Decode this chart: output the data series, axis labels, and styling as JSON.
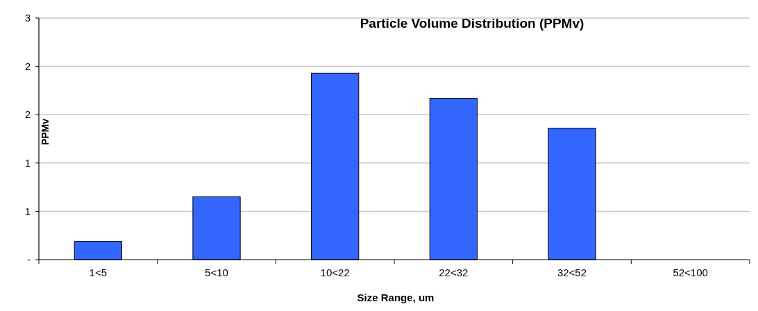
{
  "chart_data": {
    "type": "bar",
    "title": "Particle Volume Distribution (PPMv)",
    "xlabel": "Size Range, um",
    "ylabel": "PPMv",
    "categories": [
      "1<5",
      "5<10",
      "10<22",
      "22<32",
      "32<52",
      "52<100"
    ],
    "values": [
      0.19,
      0.65,
      1.93,
      1.67,
      1.36,
      0
    ],
    "color": "#3366ff",
    "ylim": [
      0,
      2.5
    ],
    "yticks": [
      {
        "value": 0,
        "label": "-"
      },
      {
        "value": 0.5,
        "label": "1"
      },
      {
        "value": 1,
        "label": "1"
      },
      {
        "value": 1.5,
        "label": "2"
      },
      {
        "value": 2,
        "label": "2"
      },
      {
        "value": 2.5,
        "label": "3"
      }
    ],
    "grid": "y"
  }
}
